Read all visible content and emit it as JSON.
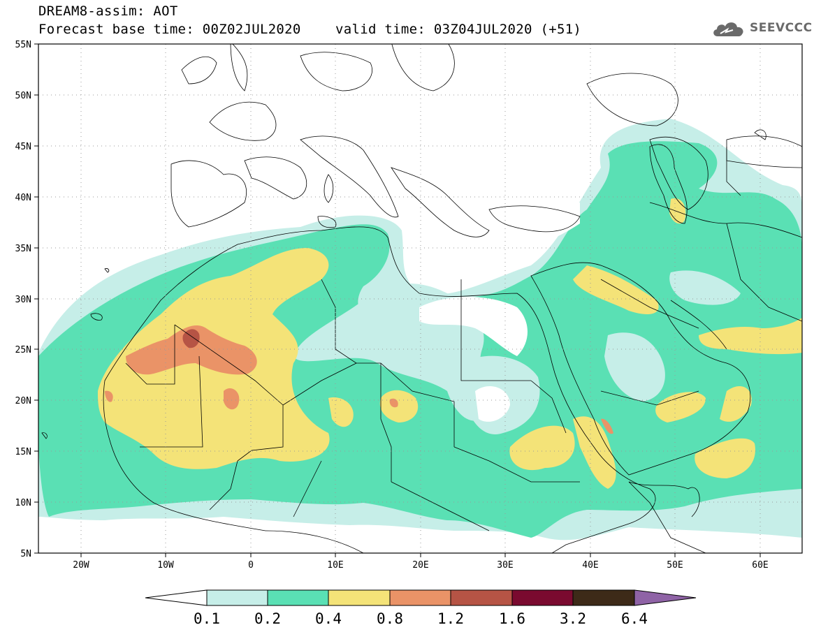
{
  "header": {
    "title": "DREAM8-assim: AOT",
    "base_time": "Forecast base time: 00Z02JUL2020",
    "valid_time": "valid time: 03Z04JUL2020 (+51)"
  },
  "logo": {
    "text": "SEEVCCC",
    "icon": "cloud-icon",
    "color": "#6a6a6a"
  },
  "map": {
    "region": "North Africa, Middle East, Europe",
    "lon_range": [
      -25,
      65
    ],
    "lat_range": [
      5,
      55
    ],
    "lat_ticks": [
      "55N",
      "50N",
      "45N",
      "40N",
      "35N",
      "30N",
      "25N",
      "20N",
      "15N",
      "10N",
      "5N"
    ],
    "lon_ticks": [
      "20W",
      "10W",
      "0",
      "10E",
      "20E",
      "30E",
      "40E",
      "50E",
      "60E"
    ],
    "grid": "dotted"
  },
  "colorbar": {
    "labels": [
      "0.1",
      "0.2",
      "0.4",
      "0.8",
      "1.2",
      "1.6",
      "3.2",
      "6.4"
    ],
    "colors": [
      "#ffffff",
      "#c6eee8",
      "#5ae0b4",
      "#f4e378",
      "#ea9367",
      "#b65445",
      "#7a0a2f",
      "#3d2a18",
      "#8f63a6"
    ]
  }
}
